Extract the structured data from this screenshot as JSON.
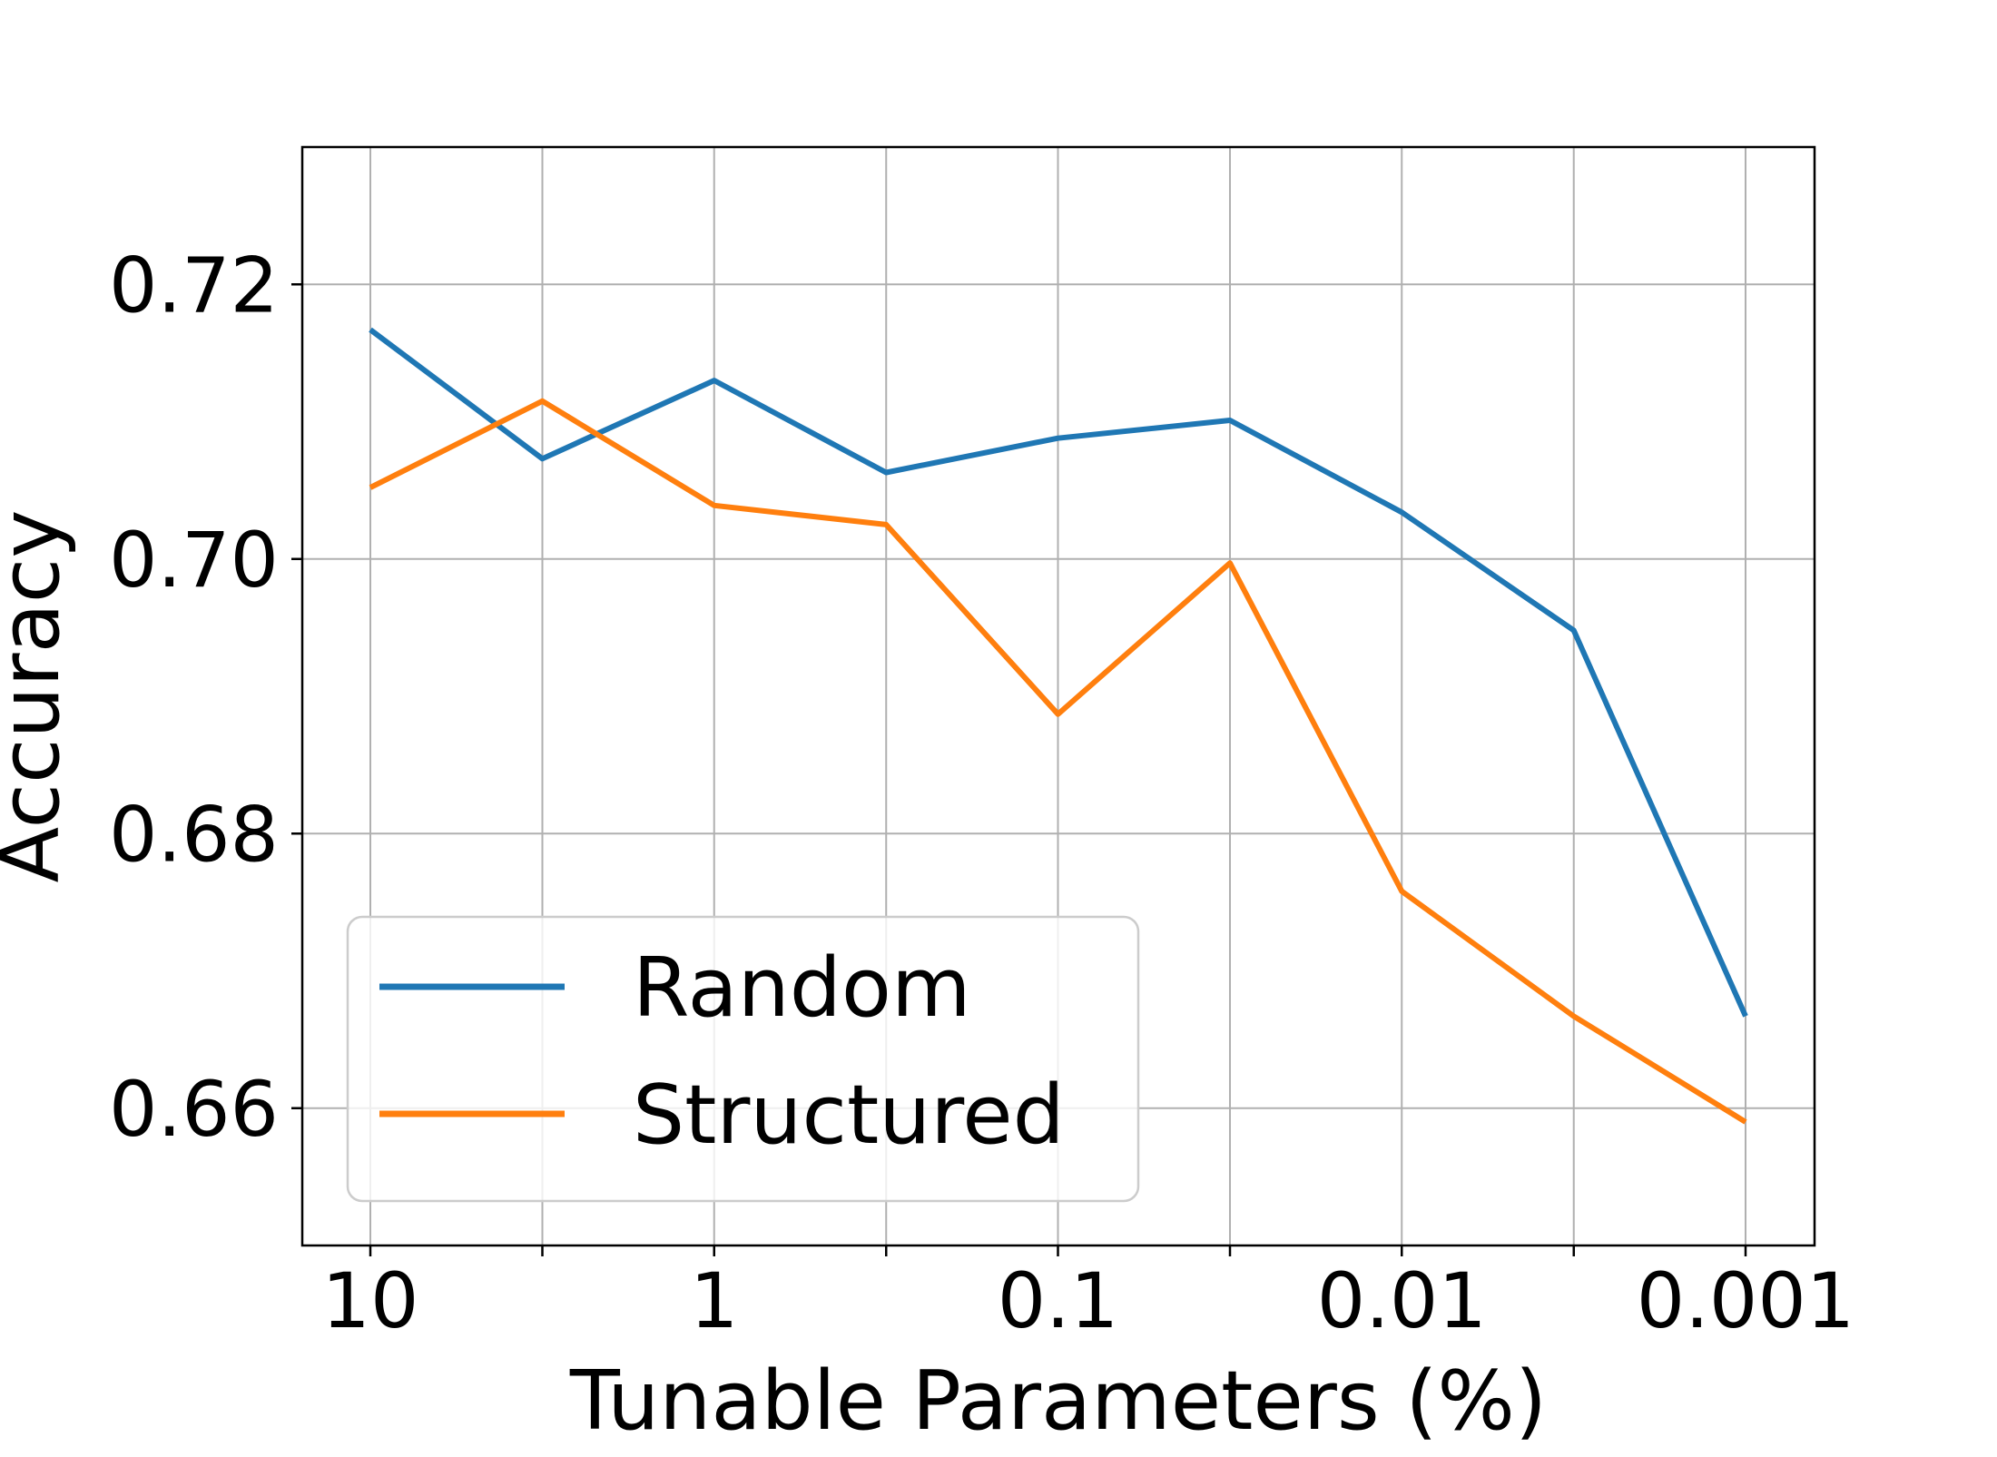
{
  "chart_data": {
    "type": "line",
    "xlabel": "Tunable Parameters (%)",
    "ylabel": "Accuracy",
    "x": [
      "10",
      "",
      "1",
      "",
      "0.1",
      "",
      "0.01",
      "",
      "0.001"
    ],
    "x_values_percent": [
      10,
      3.16,
      1,
      0.316,
      0.1,
      0.0316,
      0.01,
      0.00316,
      0.001
    ],
    "x_scale": "log, reversed",
    "x_tick_labels": [
      "10",
      "1",
      "0.1",
      "0.01",
      "0.001"
    ],
    "y_tick_labels": [
      "0.66",
      "0.68",
      "0.70",
      "0.72"
    ],
    "ylim": [
      0.65,
      0.73
    ],
    "grid": true,
    "legend_position": "lower-left",
    "series": [
      {
        "name": "Random",
        "color": "#1f77b4",
        "values": [
          0.7167,
          0.7073,
          0.713,
          0.7063,
          0.7088,
          0.7101,
          0.7034,
          0.6948,
          0.6667
        ]
      },
      {
        "name": "Structured",
        "color": "#ff7f0e",
        "values": [
          0.7052,
          0.7115,
          0.7039,
          0.7025,
          0.6887,
          0.6997,
          0.6758,
          0.6667,
          0.659
        ]
      }
    ]
  }
}
